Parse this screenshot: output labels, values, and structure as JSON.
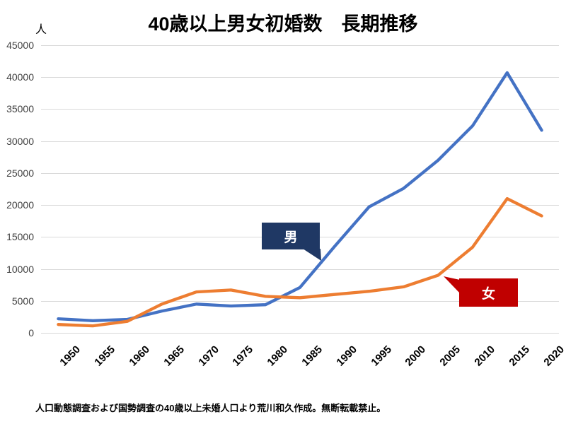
{
  "title": "40歳以上男女初婚数　長期推移",
  "y_axis": {
    "unit": "人"
  },
  "source_note": "人口動態調査および国勢調査の40歳以上未婚人口より荒川和久作成。無断転載禁止。",
  "chart_data": {
    "type": "line",
    "title": "40歳以上男女初婚数　長期推移",
    "categories": [
      "1950",
      "1955",
      "1960",
      "1965",
      "1970",
      "1975",
      "1980",
      "1985",
      "1990",
      "1995",
      "2000",
      "2005",
      "2010",
      "2015",
      "2020"
    ],
    "series": [
      {
        "name": "男",
        "color": "#4472C4",
        "values": [
          2200,
          1900,
          2100,
          3400,
          4500,
          4200,
          4400,
          7100,
          13500,
          19700,
          22600,
          27000,
          32400,
          40700,
          31700
        ]
      },
      {
        "name": "女",
        "color": "#ED7D31",
        "values": [
          1300,
          1100,
          1800,
          4500,
          6400,
          6700,
          5700,
          5500,
          6000,
          6500,
          7200,
          9000,
          13400,
          21000,
          18300
        ]
      }
    ],
    "xlabel": "",
    "ylabel": "人",
    "ylim": [
      0,
      45000
    ],
    "yticks": [
      0,
      5000,
      10000,
      15000,
      20000,
      25000,
      30000,
      35000,
      40000,
      45000
    ],
    "grid": "horizontal",
    "legend": "data-callouts",
    "annotations": [
      {
        "text": "男",
        "bg": "#1F3864",
        "fg": "#FFFFFF",
        "target_year": "1987"
      },
      {
        "text": "女",
        "bg": "#C00000",
        "fg": "#FFFFFF",
        "target_year": "2005"
      }
    ],
    "gridline_color": "#D9D9D9"
  }
}
